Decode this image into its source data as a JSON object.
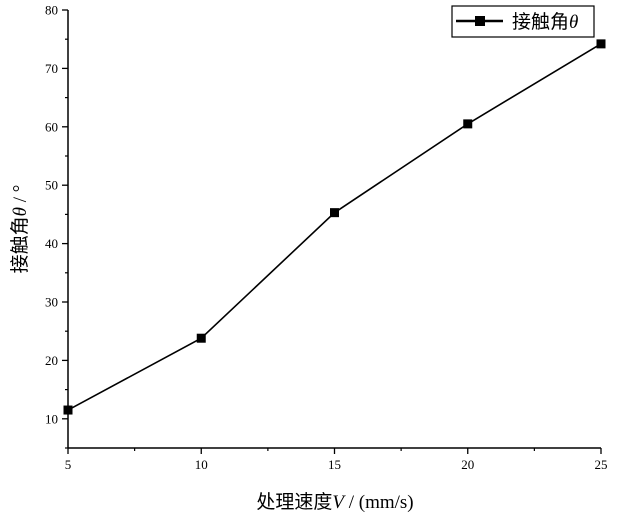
{
  "chart_data": {
    "type": "line",
    "x": [
      5,
      10,
      15,
      20,
      25
    ],
    "series": [
      {
        "name": "接触角θ",
        "values": [
          11.5,
          23.8,
          45.3,
          60.5,
          74.2
        ],
        "color": "#000000",
        "marker": "square"
      }
    ],
    "xlabel": {
      "prefix": "处理速度",
      "var": "V",
      "suffix": " / (mm/s)"
    },
    "ylabel": {
      "prefix": "接触角",
      "var": "θ",
      "suffix": " / °"
    },
    "legend": {
      "prefix": "接触角",
      "var": "θ",
      "placement": "top-right"
    },
    "xlim": [
      5,
      25
    ],
    "ylim": [
      5,
      80
    ],
    "xticks": [
      5,
      10,
      15,
      20,
      25
    ],
    "yticks": [
      10,
      20,
      30,
      40,
      50,
      60,
      70,
      80
    ],
    "grid": false
  }
}
